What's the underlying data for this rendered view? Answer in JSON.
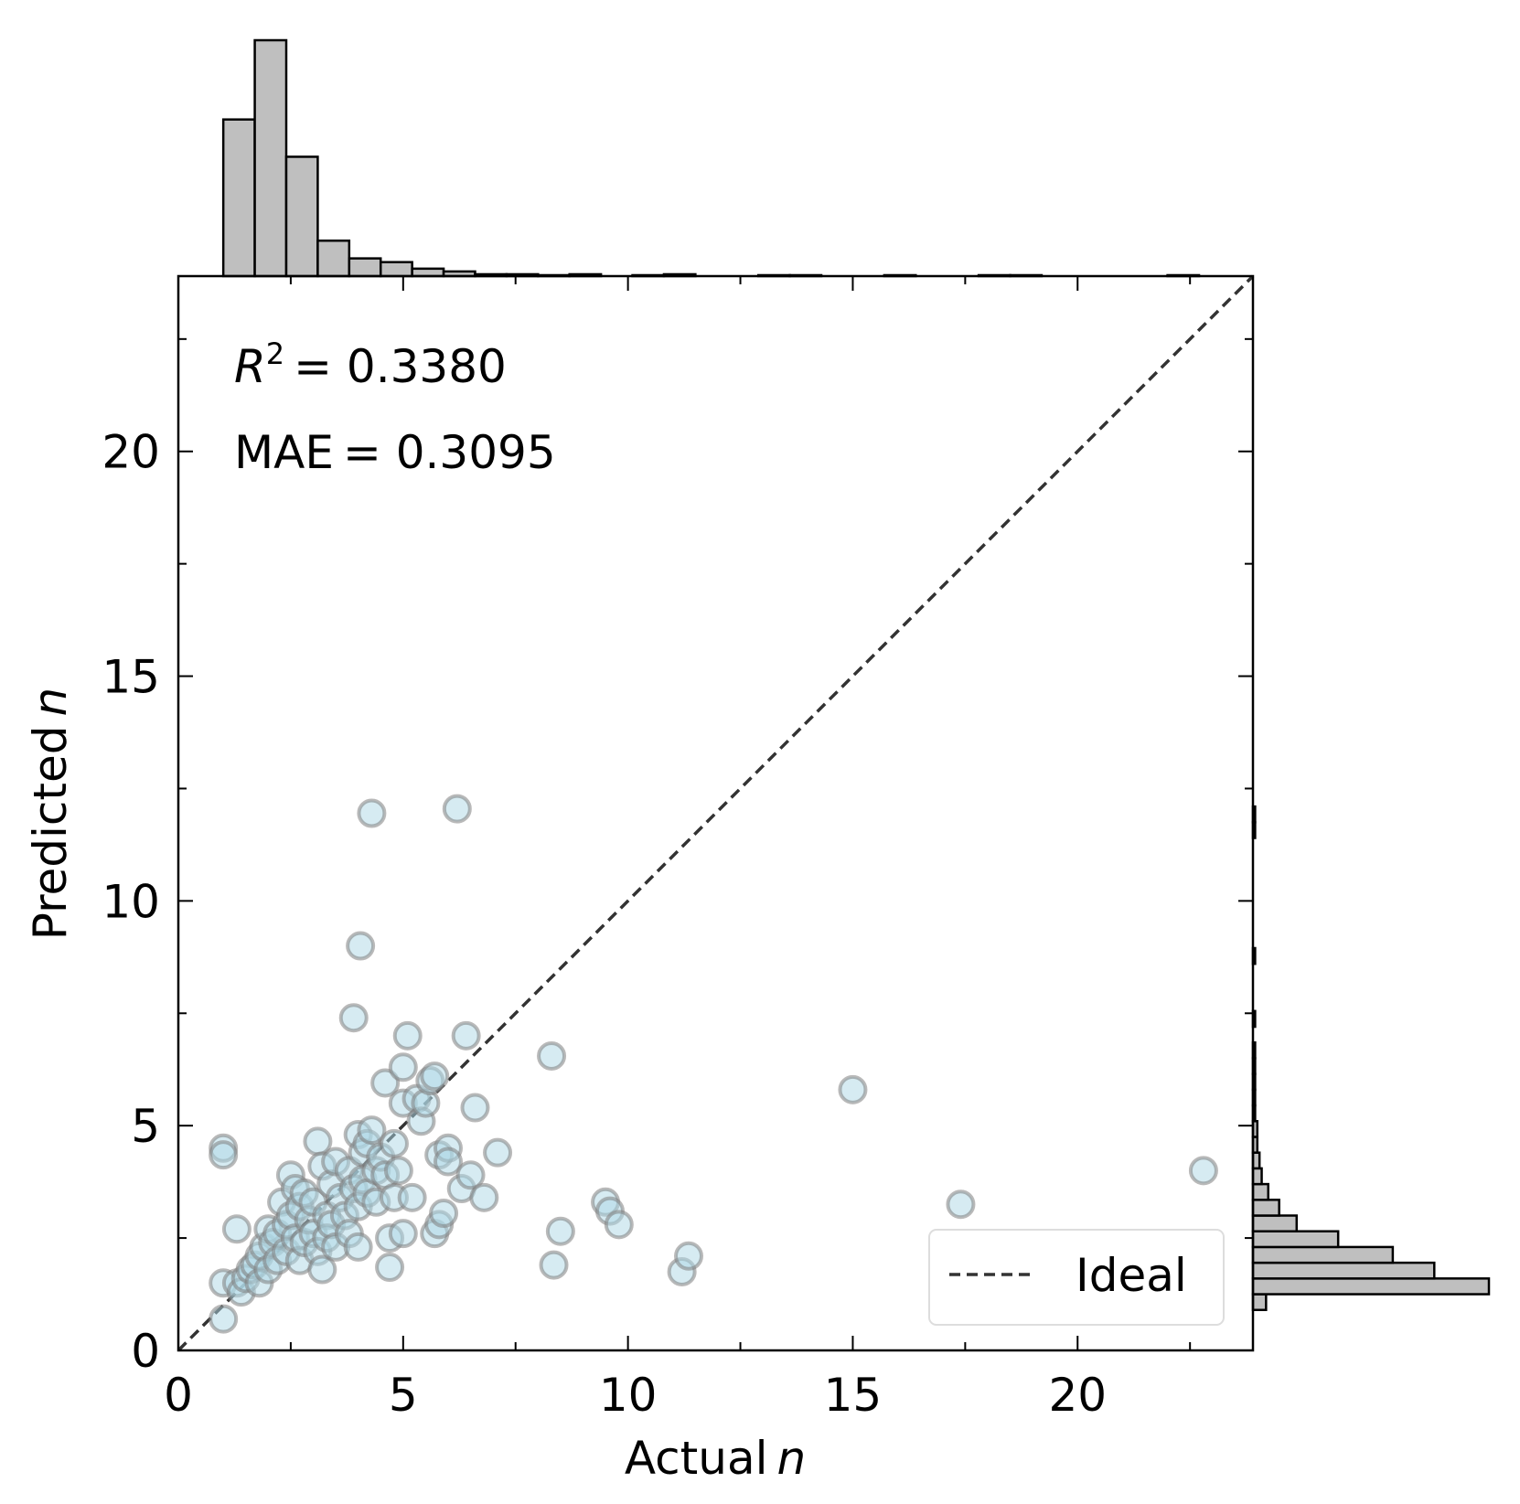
{
  "chart_data": {
    "type": "scatter",
    "xlabel": "Actual",
    "xlabel_var": "n",
    "ylabel": "Predicted",
    "ylabel_var": "n",
    "xlim": [
      0,
      23.9
    ],
    "ylim": [
      0,
      23.9
    ],
    "x_ticks": [
      0,
      5,
      10,
      15,
      20
    ],
    "y_ticks": [
      0,
      5,
      10,
      15,
      20
    ],
    "x_tick_labels": [
      "0",
      "5",
      "10",
      "15",
      "20"
    ],
    "y_tick_labels": [
      "0",
      "5",
      "10",
      "15",
      "20"
    ],
    "grid": false,
    "annotations": {
      "r2_label": "R",
      "r2_sup": "2",
      "r2_value": "= 0.3380",
      "mae_label": "MAE",
      "mae_value": "= 0.3095"
    },
    "legend": {
      "position": "lower-right",
      "entries": [
        "Ideal"
      ]
    },
    "ideal_line": {
      "from": [
        0,
        0
      ],
      "to": [
        23.9,
        23.9
      ],
      "style": "dashed",
      "color": "#333333"
    },
    "marker": {
      "fill": "#add8e6",
      "edge": "#808080",
      "alpha": 0.5
    },
    "series": [
      {
        "points": [
          [
            1.0,
            4.5
          ],
          [
            1.0,
            4.35
          ],
          [
            1.0,
            0.7
          ],
          [
            1.0,
            1.5
          ],
          [
            1.3,
            2.7
          ],
          [
            1.3,
            1.5
          ],
          [
            1.4,
            1.3
          ],
          [
            1.5,
            1.6
          ],
          [
            1.6,
            1.8
          ],
          [
            1.7,
            1.9
          ],
          [
            1.8,
            2.1
          ],
          [
            1.8,
            1.5
          ],
          [
            1.9,
            2.3
          ],
          [
            2.0,
            2.7
          ],
          [
            2.0,
            1.8
          ],
          [
            2.1,
            2.4
          ],
          [
            2.2,
            2.6
          ],
          [
            2.2,
            2.0
          ],
          [
            2.3,
            3.3
          ],
          [
            2.4,
            2.8
          ],
          [
            2.4,
            2.2
          ],
          [
            2.5,
            3.9
          ],
          [
            2.5,
            3.0
          ],
          [
            2.6,
            3.6
          ],
          [
            2.6,
            2.5
          ],
          [
            2.7,
            3.2
          ],
          [
            2.7,
            2.0
          ],
          [
            2.8,
            3.5
          ],
          [
            2.8,
            2.4
          ],
          [
            2.9,
            2.9
          ],
          [
            3.0,
            3.3
          ],
          [
            3.0,
            2.6
          ],
          [
            3.1,
            4.65
          ],
          [
            3.1,
            2.2
          ],
          [
            3.2,
            4.1
          ],
          [
            3.2,
            1.8
          ],
          [
            3.3,
            3.0
          ],
          [
            3.3,
            2.5
          ],
          [
            3.4,
            3.7
          ],
          [
            3.4,
            2.8
          ],
          [
            3.5,
            4.2
          ],
          [
            3.5,
            2.3
          ],
          [
            3.6,
            3.4
          ],
          [
            3.7,
            3.0
          ],
          [
            3.8,
            4.0
          ],
          [
            3.8,
            2.6
          ],
          [
            3.9,
            7.4
          ],
          [
            3.9,
            3.6
          ],
          [
            4.0,
            4.8
          ],
          [
            4.0,
            3.2
          ],
          [
            4.0,
            2.3
          ],
          [
            4.05,
            9.0
          ],
          [
            4.1,
            4.4
          ],
          [
            4.1,
            3.8
          ],
          [
            4.2,
            4.6
          ],
          [
            4.2,
            3.5
          ],
          [
            4.3,
            11.95
          ],
          [
            4.3,
            4.9
          ],
          [
            4.4,
            4.0
          ],
          [
            4.4,
            3.3
          ],
          [
            4.5,
            4.3
          ],
          [
            4.6,
            5.95
          ],
          [
            4.6,
            3.9
          ],
          [
            4.7,
            2.5
          ],
          [
            4.7,
            1.85
          ],
          [
            4.8,
            4.6
          ],
          [
            4.8,
            3.4
          ],
          [
            4.9,
            4.0
          ],
          [
            5.0,
            6.3
          ],
          [
            5.0,
            5.5
          ],
          [
            5.0,
            2.6
          ],
          [
            5.1,
            7.0
          ],
          [
            5.2,
            3.4
          ],
          [
            5.3,
            5.6
          ],
          [
            5.4,
            5.1
          ],
          [
            5.5,
            5.5
          ],
          [
            5.6,
            6.0
          ],
          [
            5.7,
            6.1
          ],
          [
            5.7,
            2.6
          ],
          [
            5.8,
            4.35
          ],
          [
            5.8,
            2.8
          ],
          [
            5.9,
            3.05
          ],
          [
            6.0,
            4.5
          ],
          [
            6.0,
            4.2
          ],
          [
            6.2,
            12.05
          ],
          [
            6.3,
            3.6
          ],
          [
            6.4,
            7.0
          ],
          [
            6.5,
            3.9
          ],
          [
            6.6,
            5.4
          ],
          [
            6.8,
            3.4
          ],
          [
            7.1,
            4.4
          ],
          [
            8.3,
            6.55
          ],
          [
            8.35,
            1.9
          ],
          [
            8.5,
            2.65
          ],
          [
            9.5,
            3.3
          ],
          [
            9.6,
            3.1
          ],
          [
            9.8,
            2.8
          ],
          [
            11.2,
            1.75
          ],
          [
            11.35,
            2.1
          ],
          [
            15.0,
            5.8
          ],
          [
            17.4,
            3.25
          ],
          [
            22.8,
            4.0
          ]
        ]
      }
    ],
    "top_histogram": {
      "bin_edges": [
        1.0,
        1.7,
        2.4,
        3.1,
        3.8,
        4.5,
        5.2,
        5.9,
        6.6,
        7.3,
        8.0,
        8.7,
        9.4,
        10.1,
        10.8,
        11.5,
        12.2,
        12.9,
        13.6,
        14.3,
        15.0,
        15.7,
        16.4,
        17.1,
        17.8,
        18.5,
        19.2,
        19.9,
        20.6,
        21.3,
        22.0,
        22.7
      ],
      "counts": [
        168,
        253,
        128,
        38,
        19,
        15,
        8,
        5,
        2,
        2,
        1,
        2,
        0,
        1,
        2,
        0,
        0,
        1,
        1,
        0,
        0,
        1,
        0,
        0,
        1,
        1,
        0,
        0,
        0,
        0,
        1
      ]
    },
    "right_histogram": {
      "bin_edges": [
        0.9,
        1.25,
        1.6,
        1.95,
        2.3,
        2.65,
        3.0,
        3.35,
        3.7,
        4.05,
        4.4,
        4.75,
        5.1,
        5.45,
        5.8,
        6.15,
        6.5,
        6.85,
        7.2,
        7.55,
        7.9,
        8.25,
        8.6,
        8.95,
        9.3,
        9.65,
        10.0,
        10.35,
        10.7,
        11.05,
        11.4,
        11.75,
        12.1
      ],
      "counts": [
        6,
        108,
        83,
        64,
        39,
        20,
        12,
        7,
        4,
        3,
        2,
        2,
        1,
        1,
        1,
        1,
        1,
        0,
        1,
        0,
        0,
        0,
        1,
        0,
        0,
        0,
        0,
        0,
        0,
        0,
        1,
        1
      ]
    }
  }
}
